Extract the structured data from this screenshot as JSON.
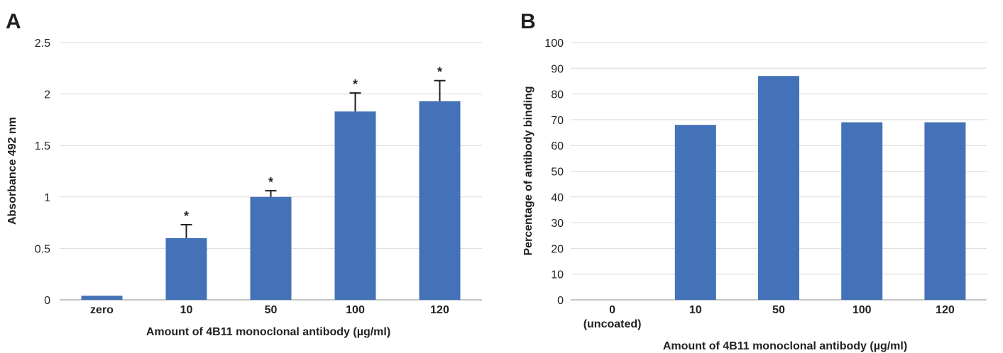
{
  "colors": {
    "bar": "#4472b8"
  },
  "chart_data": [
    {
      "panel": "A",
      "type": "bar",
      "categories": [
        "zero",
        "10",
        "50",
        "100",
        "120"
      ],
      "values": [
        0.04,
        0.6,
        1.0,
        1.83,
        1.93
      ],
      "error_upper": [
        0.0,
        0.13,
        0.06,
        0.18,
        0.2
      ],
      "significance": [
        "",
        "*",
        "*",
        "*",
        "*"
      ],
      "xlabel": "Amount of 4B11 monoclonal antibody (µg/ml)",
      "ylabel": "Absorbance 492 nm",
      "ylim": [
        0,
        2.5
      ],
      "yticks": [
        "0",
        "0.5",
        "1",
        "1.5",
        "2",
        "2.5"
      ],
      "grid": true
    },
    {
      "panel": "B",
      "type": "bar",
      "categories": [
        "0",
        "10",
        "50",
        "100",
        "120"
      ],
      "category_sublabels": [
        "(uncoated)",
        "",
        "",
        "",
        ""
      ],
      "values": [
        0,
        68,
        87,
        69,
        69
      ],
      "xlabel": "Amount of 4B11 monoclonal antibody (µg/ml)",
      "ylabel": "Percentage of antibody binding",
      "ylim": [
        0,
        100
      ],
      "yticks": [
        "0",
        "10",
        "20",
        "30",
        "40",
        "50",
        "60",
        "70",
        "80",
        "90",
        "100"
      ],
      "grid": true
    }
  ]
}
